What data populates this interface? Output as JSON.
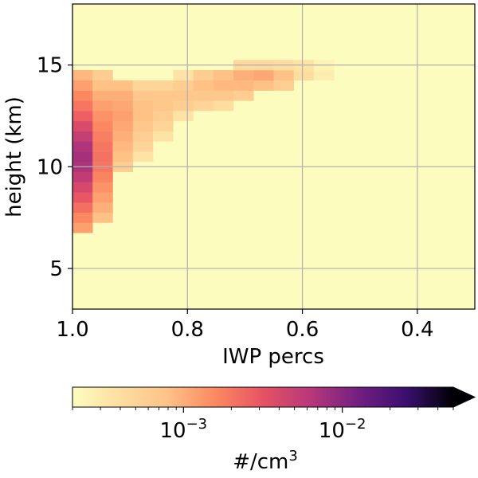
{
  "chart_data": {
    "type": "heatmap",
    "title": "",
    "xlabel": "IWP percs",
    "ylabel": "height (km)",
    "xlim": [
      1.0,
      0.3
    ],
    "ylim": [
      3.0,
      18.0
    ],
    "x_ticks": [
      1.0,
      0.8,
      0.6,
      0.4
    ],
    "x_tick_labels": [
      "1.0",
      "0.8",
      "0.6",
      "0.4"
    ],
    "y_ticks": [
      5,
      10,
      15
    ],
    "y_tick_labels": [
      "5",
      "10",
      "15"
    ],
    "grid": true,
    "background_color": "#fcfcbe",
    "grid_color": "#b0b0b0",
    "bin_width_percentile": 0.035,
    "bin_height_km": 0.5,
    "columns": [
      {
        "x0": 0.965,
        "x1": 1.0,
        "cells": [
          {
            "y0": 6.75,
            "y1": 7.25,
            "value": 0.0012
          },
          {
            "y0": 7.25,
            "y1": 7.75,
            "value": 0.0016
          },
          {
            "y0": 7.75,
            "y1": 8.25,
            "value": 0.0022
          },
          {
            "y0": 8.25,
            "y1": 8.75,
            "value": 0.003
          },
          {
            "y0": 8.75,
            "y1": 9.25,
            "value": 0.004
          },
          {
            "y0": 9.25,
            "y1": 9.75,
            "value": 0.0055
          },
          {
            "y0": 9.75,
            "y1": 10.25,
            "value": 0.007
          },
          {
            "y0": 10.25,
            "y1": 10.75,
            "value": 0.0075
          },
          {
            "y0": 10.75,
            "y1": 11.25,
            "value": 0.0068
          },
          {
            "y0": 11.25,
            "y1": 11.75,
            "value": 0.0052
          },
          {
            "y0": 11.75,
            "y1": 12.25,
            "value": 0.0038
          },
          {
            "y0": 12.25,
            "y1": 12.75,
            "value": 0.0027
          },
          {
            "y0": 12.75,
            "y1": 13.25,
            "value": 0.002
          },
          {
            "y0": 13.25,
            "y1": 13.75,
            "value": 0.0016
          },
          {
            "y0": 13.75,
            "y1": 14.25,
            "value": 0.0012
          },
          {
            "y0": 14.25,
            "y1": 14.75,
            "value": 0.0009
          }
        ]
      },
      {
        "x0": 0.93,
        "x1": 0.965,
        "cells": [
          {
            "y0": 7.25,
            "y1": 7.75,
            "value": 0.0008
          },
          {
            "y0": 7.75,
            "y1": 8.25,
            "value": 0.001
          },
          {
            "y0": 8.25,
            "y1": 8.75,
            "value": 0.0012
          },
          {
            "y0": 8.75,
            "y1": 9.25,
            "value": 0.0014
          },
          {
            "y0": 9.25,
            "y1": 9.75,
            "value": 0.0017
          },
          {
            "y0": 9.75,
            "y1": 10.25,
            "value": 0.002
          },
          {
            "y0": 10.25,
            "y1": 10.75,
            "value": 0.0021
          },
          {
            "y0": 10.75,
            "y1": 11.25,
            "value": 0.002
          },
          {
            "y0": 11.25,
            "y1": 11.75,
            "value": 0.0018
          },
          {
            "y0": 11.75,
            "y1": 12.25,
            "value": 0.0016
          },
          {
            "y0": 12.25,
            "y1": 12.75,
            "value": 0.0014
          },
          {
            "y0": 12.75,
            "y1": 13.25,
            "value": 0.0012
          },
          {
            "y0": 13.25,
            "y1": 13.75,
            "value": 0.001
          },
          {
            "y0": 13.75,
            "y1": 14.25,
            "value": 0.0008
          },
          {
            "y0": 14.25,
            "y1": 14.75,
            "value": 0.0006
          }
        ]
      },
      {
        "x0": 0.895,
        "x1": 0.93,
        "cells": [
          {
            "y0": 9.75,
            "y1": 10.25,
            "value": 0.0006
          },
          {
            "y0": 10.25,
            "y1": 10.75,
            "value": 0.0008
          },
          {
            "y0": 10.75,
            "y1": 11.25,
            "value": 0.0009
          },
          {
            "y0": 11.25,
            "y1": 11.75,
            "value": 0.001
          },
          {
            "y0": 11.75,
            "y1": 12.25,
            "value": 0.0011
          },
          {
            "y0": 12.25,
            "y1": 12.75,
            "value": 0.0012
          },
          {
            "y0": 12.75,
            "y1": 13.25,
            "value": 0.0011
          },
          {
            "y0": 13.25,
            "y1": 13.75,
            "value": 0.001
          },
          {
            "y0": 13.75,
            "y1": 14.25,
            "value": 0.0008
          }
        ]
      },
      {
        "x0": 0.86,
        "x1": 0.895,
        "cells": [
          {
            "y0": 10.25,
            "y1": 10.75,
            "value": 0.00035
          },
          {
            "y0": 10.75,
            "y1": 11.25,
            "value": 0.0005
          },
          {
            "y0": 11.25,
            "y1": 11.75,
            "value": 0.0006
          },
          {
            "y0": 11.75,
            "y1": 12.25,
            "value": 0.0007
          },
          {
            "y0": 12.25,
            "y1": 12.75,
            "value": 0.0008
          },
          {
            "y0": 12.75,
            "y1": 13.25,
            "value": 0.0008
          },
          {
            "y0": 13.25,
            "y1": 13.75,
            "value": 0.0007
          },
          {
            "y0": 13.75,
            "y1": 14.25,
            "value": 0.0005
          }
        ]
      },
      {
        "x0": 0.825,
        "x1": 0.86,
        "cells": [
          {
            "y0": 11.25,
            "y1": 11.75,
            "value": 0.00035
          },
          {
            "y0": 11.75,
            "y1": 12.25,
            "value": 0.0005
          },
          {
            "y0": 12.25,
            "y1": 12.75,
            "value": 0.0006
          },
          {
            "y0": 12.75,
            "y1": 13.25,
            "value": 0.0007
          },
          {
            "y0": 13.25,
            "y1": 13.75,
            "value": 0.0007
          },
          {
            "y0": 13.75,
            "y1": 14.25,
            "value": 0.0005
          }
        ]
      },
      {
        "x0": 0.79,
        "x1": 0.825,
        "cells": [
          {
            "y0": 12.25,
            "y1": 12.75,
            "value": 0.00035
          },
          {
            "y0": 12.75,
            "y1": 13.25,
            "value": 0.0006
          },
          {
            "y0": 13.25,
            "y1": 13.75,
            "value": 0.0007
          },
          {
            "y0": 13.75,
            "y1": 14.25,
            "value": 0.0006
          },
          {
            "y0": 14.25,
            "y1": 14.75,
            "value": 0.00035
          }
        ]
      },
      {
        "x0": 0.755,
        "x1": 0.79,
        "cells": [
          {
            "y0": 12.75,
            "y1": 13.25,
            "value": 0.0005
          },
          {
            "y0": 13.25,
            "y1": 13.75,
            "value": 0.0007
          },
          {
            "y0": 13.75,
            "y1": 14.25,
            "value": 0.0008
          },
          {
            "y0": 14.25,
            "y1": 14.75,
            "value": 0.0006
          }
        ]
      },
      {
        "x0": 0.72,
        "x1": 0.755,
        "cells": [
          {
            "y0": 12.75,
            "y1": 13.25,
            "value": 0.0004
          },
          {
            "y0": 13.25,
            "y1": 13.75,
            "value": 0.0007
          },
          {
            "y0": 13.75,
            "y1": 14.25,
            "value": 0.0009
          },
          {
            "y0": 14.25,
            "y1": 14.75,
            "value": 0.0008
          }
        ]
      },
      {
        "x0": 0.685,
        "x1": 0.72,
        "cells": [
          {
            "y0": 13.25,
            "y1": 13.75,
            "value": 0.0006
          },
          {
            "y0": 13.75,
            "y1": 14.25,
            "value": 0.0009
          },
          {
            "y0": 14.25,
            "y1": 14.75,
            "value": 0.001
          },
          {
            "y0": 14.75,
            "y1": 15.25,
            "value": 0.00045
          }
        ]
      },
      {
        "x0": 0.65,
        "x1": 0.685,
        "cells": [
          {
            "y0": 13.75,
            "y1": 14.25,
            "value": 0.0008
          },
          {
            "y0": 14.25,
            "y1": 14.75,
            "value": 0.0011
          },
          {
            "y0": 14.75,
            "y1": 15.25,
            "value": 0.00045
          }
        ]
      },
      {
        "x0": 0.615,
        "x1": 0.65,
        "cells": [
          {
            "y0": 13.75,
            "y1": 14.25,
            "value": 0.0006
          },
          {
            "y0": 14.25,
            "y1": 14.75,
            "value": 0.0008
          },
          {
            "y0": 14.75,
            "y1": 15.25,
            "value": 0.0004
          }
        ]
      },
      {
        "x0": 0.58,
        "x1": 0.615,
        "cells": [
          {
            "y0": 14.25,
            "y1": 14.75,
            "value": 0.0004
          },
          {
            "y0": 14.75,
            "y1": 15.25,
            "value": 0.00035
          }
        ]
      },
      {
        "x0": 0.545,
        "x1": 0.58,
        "cells": [
          {
            "y0": 14.25,
            "y1": 14.75,
            "value": 0.00028
          },
          {
            "y0": 14.75,
            "y1": 15.25,
            "value": 0.00025
          }
        ]
      }
    ],
    "colorbar": {
      "label": "#/cm",
      "label_superscript": "3",
      "scale": "log",
      "colormap": "magma_r",
      "min": 0.0002,
      "max": 0.05,
      "extend": "max",
      "ticks": [
        {
          "value": 0.001,
          "base": "10",
          "exponent": "−3"
        },
        {
          "value": 0.01,
          "base": "10",
          "exponent": "−2"
        }
      ]
    }
  }
}
